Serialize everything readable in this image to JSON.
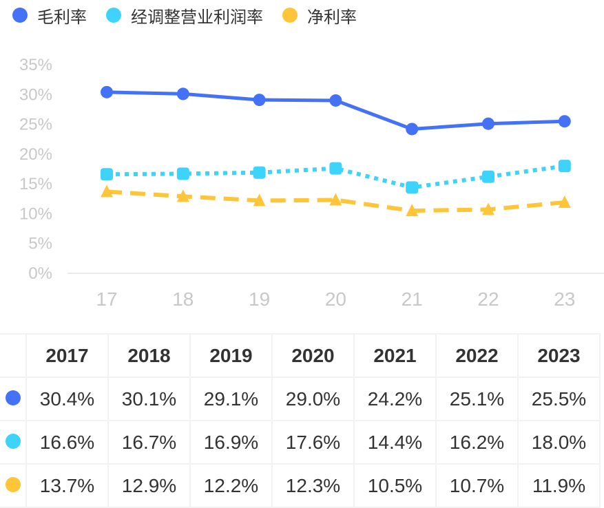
{
  "chart_data": {
    "type": "line",
    "title": "",
    "categories": [
      "17",
      "18",
      "19",
      "20",
      "21",
      "22",
      "23"
    ],
    "xlabel": "",
    "ylabel": "",
    "ylim": [
      0,
      35
    ],
    "yticks": [
      "0%",
      "5%",
      "10%",
      "15%",
      "20%",
      "25%",
      "30%",
      "35%"
    ],
    "yticks_values": [
      0,
      5,
      10,
      15,
      20,
      25,
      30,
      35
    ],
    "legend_position": "top-left",
    "series": [
      {
        "name": "毛利率",
        "color": "#4472F7",
        "style": "solid",
        "marker": "circle",
        "values": [
          30.4,
          30.1,
          29.1,
          29.0,
          24.2,
          25.1,
          25.5
        ]
      },
      {
        "name": "经调整营业利润率",
        "color": "#3DD3FB",
        "style": "dotted",
        "marker": "square",
        "values": [
          16.6,
          16.7,
          16.9,
          17.6,
          14.4,
          16.2,
          18.0
        ]
      },
      {
        "name": "净利率",
        "color": "#FDC537",
        "style": "dashed",
        "marker": "triangle",
        "values": [
          13.7,
          12.9,
          12.2,
          12.3,
          10.5,
          10.7,
          11.9
        ]
      }
    ]
  },
  "table": {
    "headers": [
      "2017",
      "2018",
      "2019",
      "2020",
      "2021",
      "2022",
      "2023"
    ],
    "rows": [
      [
        "30.4%",
        "30.1%",
        "29.1%",
        "29.0%",
        "24.2%",
        "25.1%",
        "25.5%"
      ],
      [
        "16.6%",
        "16.7%",
        "16.9%",
        "17.6%",
        "14.4%",
        "16.2%",
        "18.0%"
      ],
      [
        "13.7%",
        "12.9%",
        "12.2%",
        "12.3%",
        "10.5%",
        "10.7%",
        "11.9%"
      ]
    ]
  }
}
